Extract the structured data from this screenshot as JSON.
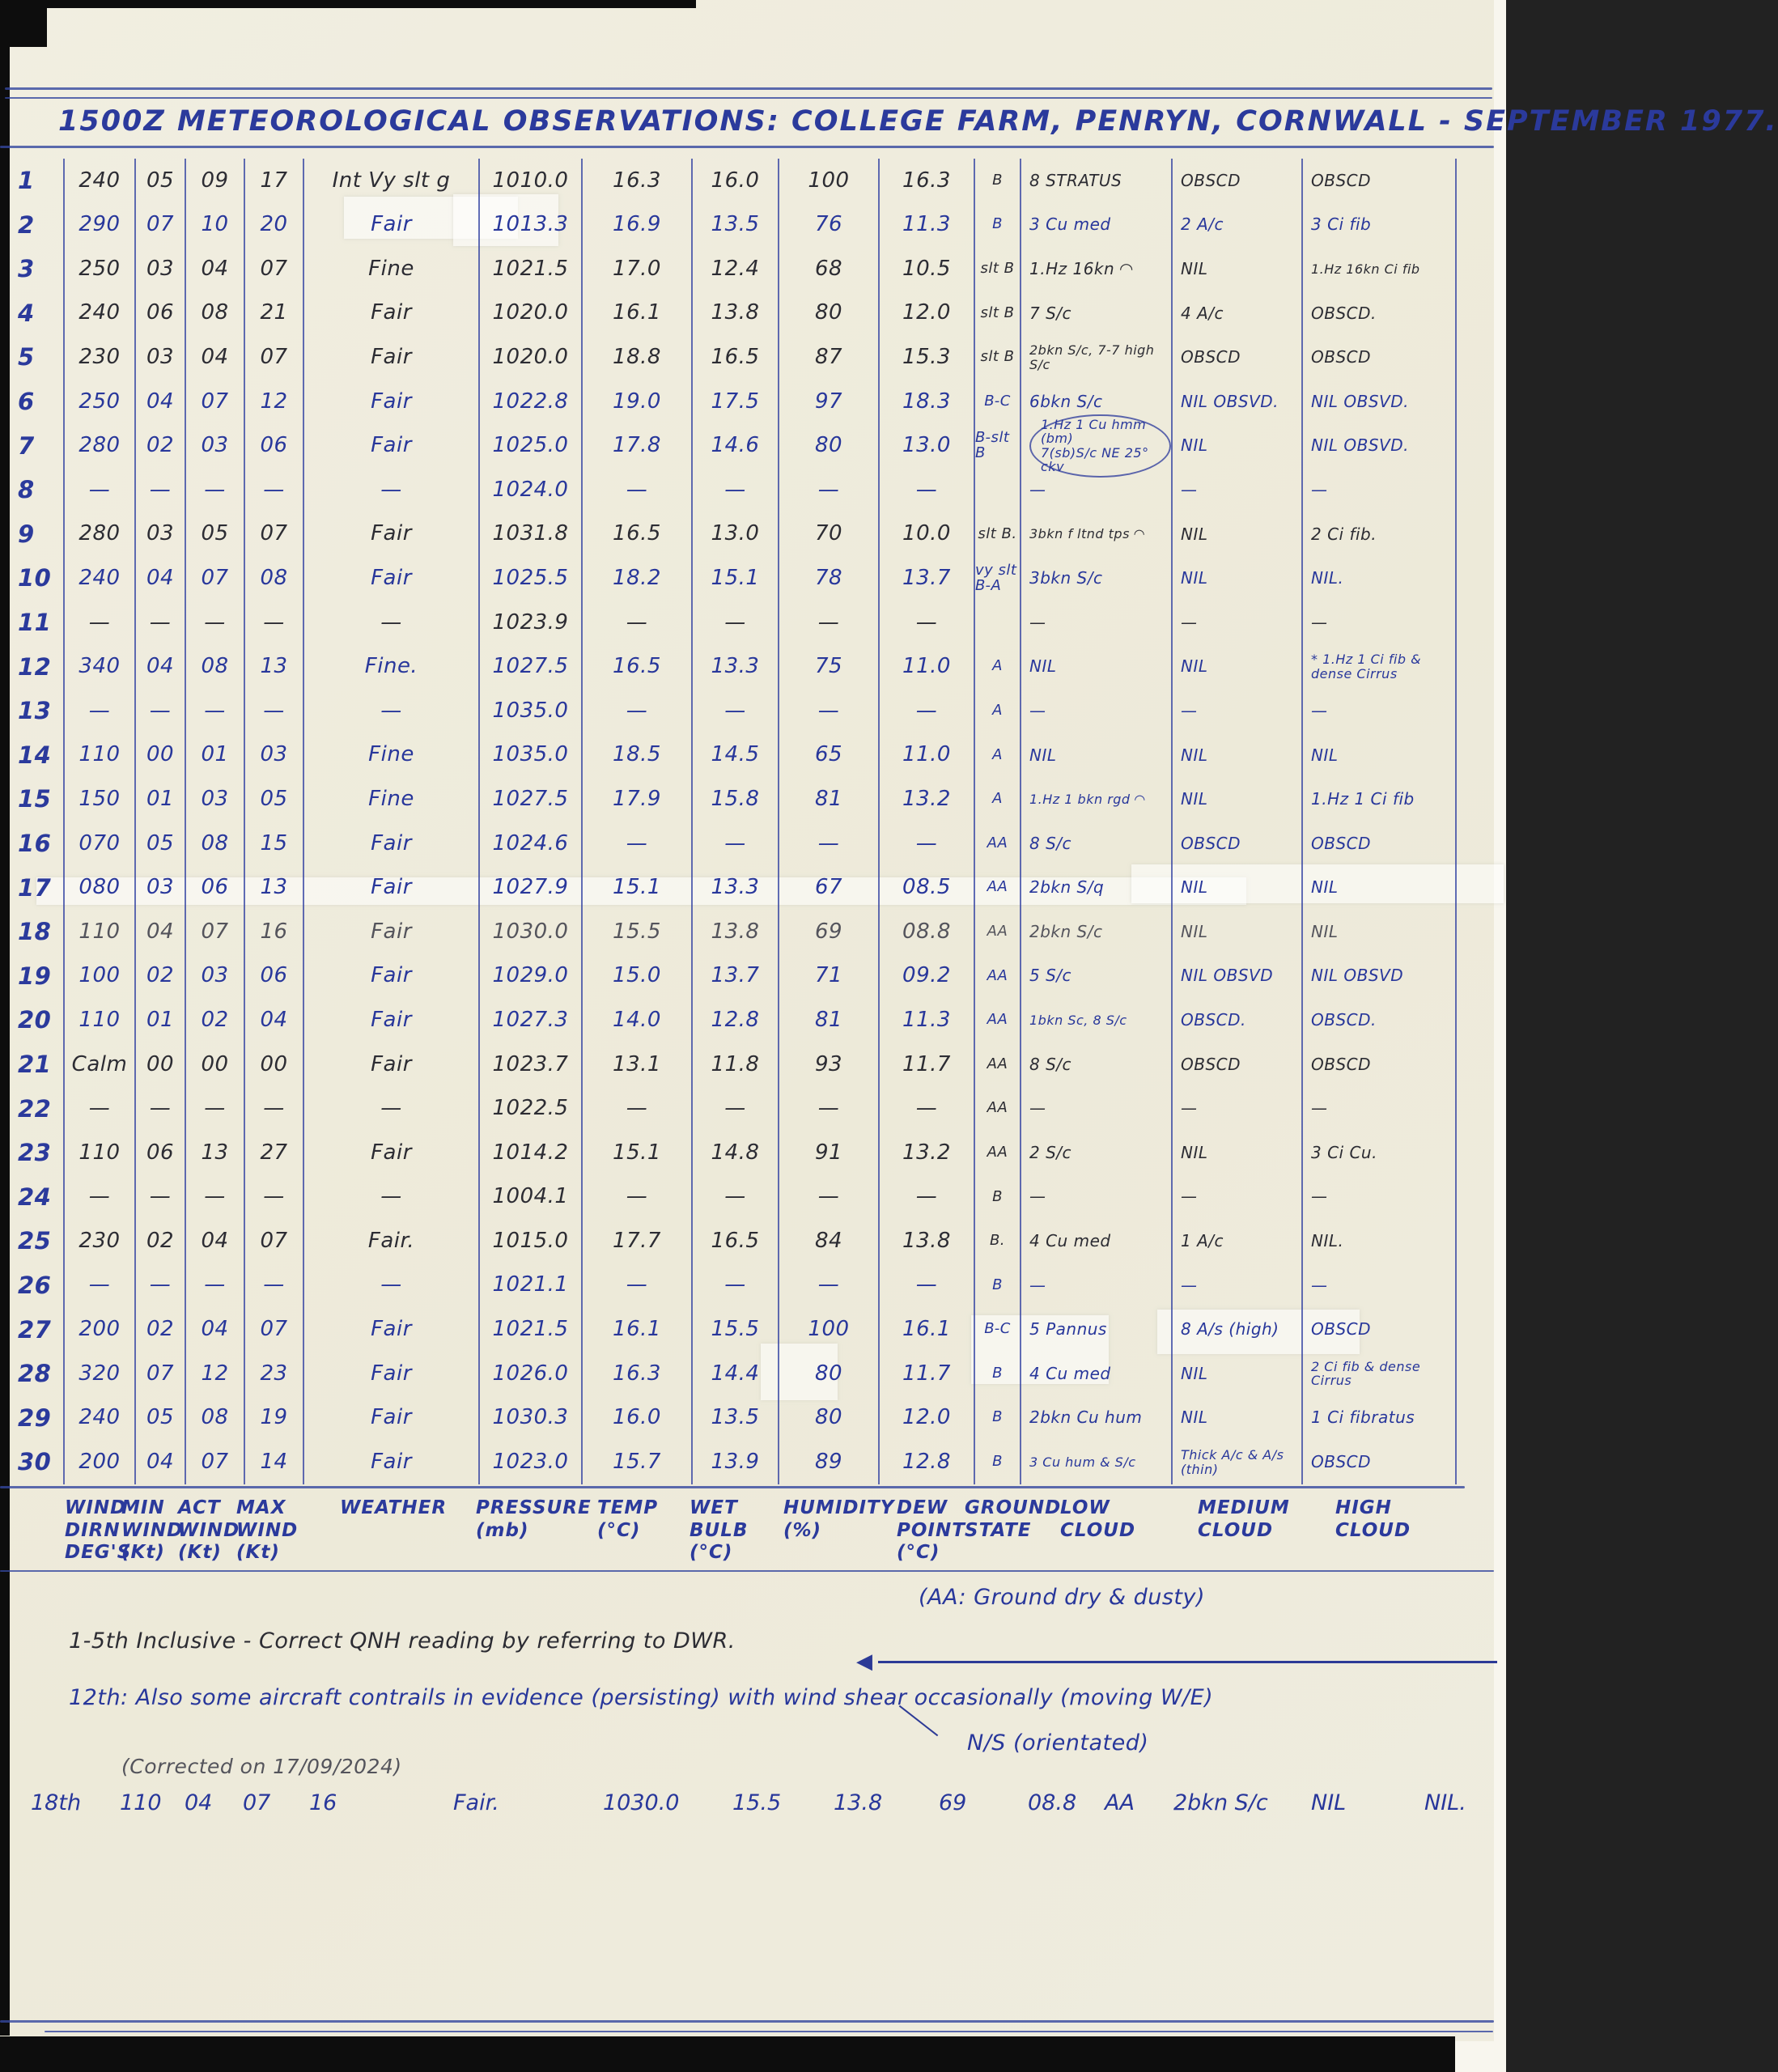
{
  "title": "1500Z METEOROLOGICAL OBSERVATIONS: COLLEGE FARM, PENRYN, CORNWALL - SEPTEMBER 1977.",
  "table": {
    "headers": [
      [
        "WIND",
        "DIRN",
        "DEG'S"
      ],
      [
        "MIN",
        "WIND",
        "(Kt)"
      ],
      [
        "ACT",
        "WIND",
        "(Kt)"
      ],
      [
        "MAX",
        "WIND",
        "(Kt)"
      ],
      [
        "WEATHER"
      ],
      [
        "PRESSURE",
        "(mb)"
      ],
      [
        "TEMP",
        "(°C)"
      ],
      [
        "WET",
        "BULB",
        "(°C)"
      ],
      [
        "HUMIDITY",
        "(%)"
      ],
      [
        "DEW",
        "POINT",
        "(°C)"
      ],
      [
        "GROUND",
        "STATE"
      ],
      [
        "LOW",
        "CLOUD"
      ],
      [
        "MEDIUM",
        "CLOUD"
      ],
      [
        "HIGH",
        "CLOUD"
      ]
    ],
    "rows": [
      {
        "day": "1",
        "ink": "black",
        "cells": [
          "240",
          "05",
          "09",
          "17",
          "Int Vy slt g",
          "1010.0",
          "16.3",
          "16.0",
          "100",
          "16.3",
          "B",
          "8 STRATUS",
          "OBSCD",
          "OBSCD"
        ]
      },
      {
        "day": "2",
        "ink": "blue",
        "cells": [
          "290",
          "07",
          "10",
          "20",
          "Fair",
          "1013.3",
          "16.9",
          "13.5",
          "76",
          "11.3",
          "B",
          "3 Cu med",
          "2 A/c",
          "3 Ci fib"
        ]
      },
      {
        "day": "3",
        "ink": "black",
        "cells": [
          "250",
          "03",
          "04",
          "07",
          "Fine",
          "1021.5",
          "17.0",
          "12.4",
          "68",
          "10.5",
          "slt B",
          "1.Hz 16kn ◠",
          "NIL",
          "1.Hz 16kn Ci fib"
        ]
      },
      {
        "day": "4",
        "ink": "black",
        "cells": [
          "240",
          "06",
          "08",
          "21",
          "Fair",
          "1020.0",
          "16.1",
          "13.8",
          "80",
          "12.0",
          "slt B",
          "7 S/c",
          "4 A/c",
          "OBSCD."
        ]
      },
      {
        "day": "5",
        "ink": "black",
        "cells": [
          "230",
          "03",
          "04",
          "07",
          "Fair",
          "1020.0",
          "18.8",
          "16.5",
          "87",
          "15.3",
          "slt B",
          "2bkn S/c, 7-7 high S/c",
          "OBSCD",
          "OBSCD"
        ]
      },
      {
        "day": "6",
        "ink": "blue",
        "cells": [
          "250",
          "04",
          "07",
          "12",
          "Fair",
          "1022.8",
          "19.0",
          "17.5",
          "97",
          "18.3",
          "B-C",
          "6bkn S/c",
          "NIL OBSVD.",
          "NIL OBSVD."
        ]
      },
      {
        "day": "7",
        "ink": "blue",
        "cells": [
          "280",
          "02",
          "03",
          "06",
          "Fair",
          "1025.0",
          "17.8",
          "14.6",
          "80",
          "13.0",
          "B-slt B",
          "1.Hz 1 Cu hmm (bm)\n7(sb)S/c NE 25° ckv",
          "NIL",
          "NIL OBSVD."
        ]
      },
      {
        "day": "8",
        "ink": "blue",
        "cells": [
          "—",
          "—",
          "—",
          "—",
          "—",
          "1024.0",
          "—",
          "—",
          "—",
          "—",
          "",
          "—",
          "—",
          "—"
        ]
      },
      {
        "day": "9",
        "ink": "black",
        "cells": [
          "280",
          "03",
          "05",
          "07",
          "Fair",
          "1031.8",
          "16.5",
          "13.0",
          "70",
          "10.0",
          "slt B.",
          "3bkn f ltnd tps ◠",
          "NIL",
          "2 Ci fib."
        ]
      },
      {
        "day": "10",
        "ink": "blue",
        "cells": [
          "240",
          "04",
          "07",
          "08",
          "Fair",
          "1025.5",
          "18.2",
          "15.1",
          "78",
          "13.7",
          "vy slt B-A",
          "3bkn S/c",
          "NIL",
          "NIL."
        ]
      },
      {
        "day": "11",
        "ink": "black",
        "cells": [
          "—",
          "—",
          "—",
          "—",
          "—",
          "1023.9",
          "—",
          "—",
          "—",
          "—",
          "",
          "—",
          "—",
          "—"
        ]
      },
      {
        "day": "12",
        "ink": "blue",
        "cells": [
          "340",
          "04",
          "08",
          "13",
          "Fine.",
          "1027.5",
          "16.5",
          "13.3",
          "75",
          "11.0",
          "A",
          "NIL",
          "NIL",
          "* 1.Hz 1 Ci fib &\ndense Cirrus"
        ]
      },
      {
        "day": "13",
        "ink": "blue",
        "cells": [
          "—",
          "—",
          "—",
          "—",
          "—",
          "1035.0",
          "—",
          "—",
          "—",
          "—",
          "A",
          "—",
          "—",
          "—"
        ]
      },
      {
        "day": "14",
        "ink": "blue",
        "cells": [
          "110",
          "00",
          "01",
          "03",
          "Fine",
          "1035.0",
          "18.5",
          "14.5",
          "65",
          "11.0",
          "A",
          "NIL",
          "NIL",
          "NIL"
        ]
      },
      {
        "day": "15",
        "ink": "blue",
        "cells": [
          "150",
          "01",
          "03",
          "05",
          "Fine",
          "1027.5",
          "17.9",
          "15.8",
          "81",
          "13.2",
          "A",
          "1.Hz 1 bkn rgd ◠",
          "NIL",
          "1.Hz 1 Ci fib"
        ]
      },
      {
        "day": "16",
        "ink": "blue",
        "cells": [
          "070",
          "05",
          "08",
          "15",
          "Fair",
          "1024.6",
          "—",
          "—",
          "—",
          "—",
          "AA",
          "8 S/c",
          "OBSCD",
          "OBSCD"
        ]
      },
      {
        "day": "17",
        "ink": "blue",
        "cells": [
          "080",
          "03",
          "06",
          "13",
          "Fair",
          "1027.9",
          "15.1",
          "13.3",
          "67",
          "08.5",
          "AA",
          "2bkn S/q",
          "NIL",
          "NIL"
        ]
      },
      {
        "day": "18",
        "ink": "grey",
        "cells": [
          "110",
          "04",
          "07",
          "16",
          "Fair",
          "1030.0",
          "15.5",
          "13.8",
          "69",
          "08.8",
          "AA",
          "2bkn S/c",
          "NIL",
          "NIL"
        ]
      },
      {
        "day": "19",
        "ink": "blue",
        "cells": [
          "100",
          "02",
          "03",
          "06",
          "Fair",
          "1029.0",
          "15.0",
          "13.7",
          "71",
          "09.2",
          "AA",
          "5 S/c",
          "NIL OBSVD",
          "NIL OBSVD"
        ]
      },
      {
        "day": "20",
        "ink": "blue",
        "cells": [
          "110",
          "01",
          "02",
          "04",
          "Fair",
          "1027.3",
          "14.0",
          "12.8",
          "81",
          "11.3",
          "AA",
          "1bkn Sc, 8 S/c",
          "OBSCD.",
          "OBSCD."
        ]
      },
      {
        "day": "21",
        "ink": "black",
        "cells": [
          "Calm",
          "00",
          "00",
          "00",
          "Fair",
          "1023.7",
          "13.1",
          "11.8",
          "93",
          "11.7",
          "AA",
          "8 S/c",
          "OBSCD",
          "OBSCD"
        ]
      },
      {
        "day": "22",
        "ink": "black",
        "cells": [
          "—",
          "—",
          "—",
          "—",
          "—",
          "1022.5",
          "—",
          "—",
          "—",
          "—",
          "AA",
          "—",
          "—",
          "—"
        ]
      },
      {
        "day": "23",
        "ink": "black",
        "cells": [
          "110",
          "06",
          "13",
          "27",
          "Fair",
          "1014.2",
          "15.1",
          "14.8",
          "91",
          "13.2",
          "AA",
          "2 S/c",
          "NIL",
          "3 Ci Cu."
        ]
      },
      {
        "day": "24",
        "ink": "black",
        "cells": [
          "—",
          "—",
          "—",
          "—",
          "—",
          "1004.1",
          "—",
          "—",
          "—",
          "—",
          "B",
          "—",
          "—",
          "—"
        ]
      },
      {
        "day": "25",
        "ink": "black",
        "cells": [
          "230",
          "02",
          "04",
          "07",
          "Fair.",
          "1015.0",
          "17.7",
          "16.5",
          "84",
          "13.8",
          "B.",
          "4 Cu med",
          "1 A/c",
          "NIL."
        ]
      },
      {
        "day": "26",
        "ink": "blue",
        "cells": [
          "—",
          "—",
          "—",
          "—",
          "—",
          "1021.1",
          "—",
          "—",
          "—",
          "—",
          "B",
          "—",
          "—",
          "—"
        ]
      },
      {
        "day": "27",
        "ink": "blue",
        "cells": [
          "200",
          "02",
          "04",
          "07",
          "Fair",
          "1021.5",
          "16.1",
          "15.5",
          "100",
          "16.1",
          "B-C",
          "5 Pannus",
          "8 A/s (high)",
          "OBSCD"
        ]
      },
      {
        "day": "28",
        "ink": "blue",
        "cells": [
          "320",
          "07",
          "12",
          "23",
          "Fair",
          "1026.0",
          "16.3",
          "14.4",
          "80",
          "11.7",
          "B",
          "4 Cu med",
          "NIL",
          "2 Ci fib & dense Cirrus"
        ]
      },
      {
        "day": "29",
        "ink": "blue",
        "cells": [
          "240",
          "05",
          "08",
          "19",
          "Fair",
          "1030.3",
          "16.0",
          "13.5",
          "80",
          "12.0",
          "B",
          "2bkn Cu hum",
          "NIL",
          "1 Ci fibratus"
        ]
      },
      {
        "day": "30",
        "ink": "blue",
        "cells": [
          "200",
          "04",
          "07",
          "14",
          "Fair",
          "1023.0",
          "15.7",
          "13.9",
          "89",
          "12.8",
          "B",
          "3 Cu hum & S/c",
          "Thick A/c & A/s (thin)",
          "OBSCD"
        ]
      }
    ]
  },
  "notes": {
    "aa": "(AA: Ground dry & dusty)",
    "line1": "1-5th Inclusive - Correct        QNH reading by referring to DWR.",
    "line2": "12th: Also some aircraft contrails in evidence      (persisting) with wind shear occasionally  (moving W/E)",
    "ns": "N/S (orientated)"
  },
  "correction": {
    "label": "(Corrected on 17/09/2024)",
    "values": [
      "18th",
      "110",
      "04",
      "07",
      "16",
      "Fair.",
      "1030.0",
      "15.5",
      "13.8",
      "69",
      "08.8",
      "AA",
      "2bkn S/c",
      "NIL",
      "NIL."
    ]
  }
}
